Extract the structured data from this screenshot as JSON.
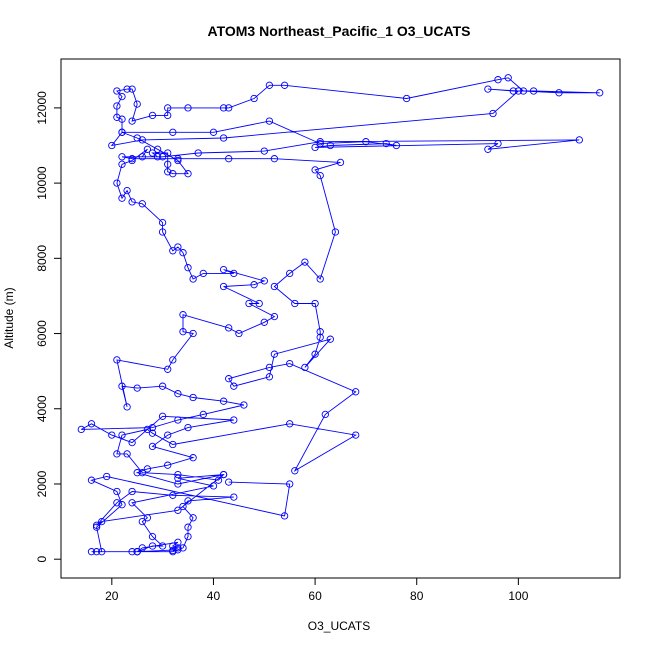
{
  "chart_data": {
    "type": "line",
    "title": "ATOM3 Northeast_Pacific_1 O3_UCATS",
    "xlabel": "O3_UCATS",
    "ylabel": "Altitude (m)",
    "xlim": [
      10,
      120
    ],
    "ylim": [
      -500,
      13300
    ],
    "xticks": [
      20,
      40,
      60,
      80,
      100
    ],
    "yticks": [
      0,
      2000,
      4000,
      6000,
      8000,
      10000,
      12000
    ],
    "grid": false,
    "markers": "open-circle",
    "color": "#0000ff",
    "series": [
      {
        "values": [
          [
            25,
            200
          ],
          [
            33,
            250
          ],
          [
            32,
            230
          ],
          [
            33,
            300
          ],
          [
            32,
            350
          ],
          [
            33,
            450
          ],
          [
            26,
            300
          ],
          [
            25,
            200
          ],
          [
            32,
            200
          ],
          [
            34,
            300
          ],
          [
            35,
            600
          ],
          [
            35,
            850
          ],
          [
            36,
            1100
          ],
          [
            34,
            1400
          ],
          [
            35,
            1550
          ],
          [
            44,
            1650
          ],
          [
            32,
            1700
          ],
          [
            24,
            1800
          ],
          [
            21,
            1500
          ],
          [
            17,
            900
          ],
          [
            18,
            1000
          ],
          [
            33,
            1300
          ],
          [
            42,
            2250
          ],
          [
            33,
            2000
          ],
          [
            25,
            2300
          ],
          [
            27,
            2400
          ],
          [
            31,
            2500
          ],
          [
            36,
            2700
          ],
          [
            28,
            3000
          ],
          [
            31,
            3300
          ],
          [
            35,
            3500
          ],
          [
            44,
            3700
          ],
          [
            30,
            3800
          ],
          [
            24,
            3100
          ],
          [
            20,
            3300
          ],
          [
            16,
            3600
          ],
          [
            14,
            3450
          ],
          [
            28,
            3500
          ],
          [
            33,
            3700
          ],
          [
            38,
            3850
          ],
          [
            46,
            4100
          ],
          [
            42,
            4200
          ],
          [
            36,
            4300
          ],
          [
            33,
            4400
          ],
          [
            30,
            4600
          ],
          [
            25,
            4550
          ],
          [
            22,
            4600
          ],
          [
            23,
            4050
          ],
          [
            21,
            5300
          ],
          [
            31,
            5050
          ],
          [
            32,
            5300
          ],
          [
            36,
            6000
          ],
          [
            34,
            6050
          ],
          [
            34,
            6500
          ],
          [
            43,
            6150
          ],
          [
            45,
            6000
          ],
          [
            50,
            6300
          ],
          [
            52,
            6450
          ],
          [
            47,
            6800
          ],
          [
            49,
            6800
          ],
          [
            42,
            7250
          ],
          [
            48,
            7300
          ],
          [
            50,
            7400
          ],
          [
            42,
            7700
          ],
          [
            44,
            7600
          ],
          [
            38,
            7600
          ],
          [
            36,
            7450
          ],
          [
            35,
            7750
          ],
          [
            34,
            8150
          ],
          [
            33,
            8300
          ],
          [
            32,
            8200
          ],
          [
            30,
            8700
          ],
          [
            30,
            8950
          ],
          [
            26,
            9450
          ],
          [
            24,
            9500
          ],
          [
            23,
            9800
          ],
          [
            22,
            9600
          ],
          [
            21,
            10000
          ],
          [
            22,
            10500
          ],
          [
            24,
            10600
          ],
          [
            27,
            10900
          ],
          [
            26,
            10700
          ],
          [
            29,
            10700
          ],
          [
            28,
            10800
          ],
          [
            31,
            10800
          ],
          [
            31,
            10500
          ],
          [
            31,
            10300
          ],
          [
            32,
            10250
          ],
          [
            35,
            10250
          ],
          [
            33,
            10600
          ],
          [
            29,
            10900
          ],
          [
            25,
            11200
          ],
          [
            22,
            11350
          ],
          [
            22,
            11700
          ],
          [
            21,
            11750
          ],
          [
            21,
            12050
          ],
          [
            22,
            12300
          ],
          [
            21,
            12450
          ],
          [
            23,
            12500
          ],
          [
            24,
            12500
          ],
          [
            25,
            12100
          ],
          [
            24,
            11650
          ],
          [
            28,
            11800
          ],
          [
            31,
            11800
          ],
          [
            31,
            12000
          ],
          [
            35,
            12000
          ],
          [
            42,
            12000
          ],
          [
            43,
            12000
          ],
          [
            48,
            12250
          ],
          [
            51,
            12600
          ],
          [
            54,
            12600
          ],
          [
            78,
            12250
          ],
          [
            96,
            12750
          ],
          [
            98,
            12800
          ],
          [
            101,
            12450
          ],
          [
            108,
            12400
          ],
          [
            116,
            12400
          ],
          [
            103,
            12450
          ],
          [
            99,
            12450
          ],
          [
            94,
            12500
          ],
          [
            100,
            12450
          ],
          [
            95,
            11850
          ],
          [
            42,
            11200
          ],
          [
            26,
            11150
          ],
          [
            20,
            11000
          ],
          [
            22,
            11350
          ],
          [
            32,
            11350
          ],
          [
            40,
            11350
          ],
          [
            51,
            11650
          ],
          [
            61,
            11050
          ],
          [
            70,
            11100
          ],
          [
            76,
            11000
          ],
          [
            74,
            11050
          ],
          [
            63,
            11000
          ],
          [
            60,
            10950
          ],
          [
            96,
            11050
          ],
          [
            94,
            10900
          ],
          [
            112,
            11150
          ],
          [
            61,
            11100
          ],
          [
            50,
            10850
          ],
          [
            37,
            10800
          ],
          [
            30,
            10700
          ],
          [
            22,
            10700
          ],
          [
            24,
            10650
          ],
          [
            33,
            10650
          ],
          [
            43,
            10650
          ],
          [
            52,
            10650
          ],
          [
            65,
            10550
          ],
          [
            60,
            10350
          ],
          [
            61,
            10200
          ],
          [
            64,
            8700
          ],
          [
            61,
            7450
          ],
          [
            58,
            7900
          ],
          [
            55,
            7600
          ],
          [
            52,
            7250
          ],
          [
            56,
            6800
          ],
          [
            60,
            6800
          ],
          [
            61,
            6050
          ],
          [
            61,
            5900
          ],
          [
            60,
            5450
          ],
          [
            58,
            5100
          ],
          [
            63,
            5850
          ],
          [
            52,
            5450
          ],
          [
            51,
            4850
          ],
          [
            44,
            4600
          ],
          [
            43,
            4800
          ],
          [
            51,
            5100
          ],
          [
            55,
            5200
          ],
          [
            68,
            4450
          ],
          [
            62,
            3850
          ],
          [
            56,
            2350
          ],
          [
            68,
            3300
          ],
          [
            55,
            3600
          ],
          [
            32,
            3050
          ],
          [
            28,
            3350
          ],
          [
            27,
            3450
          ],
          [
            22,
            3300
          ],
          [
            21,
            2800
          ],
          [
            23,
            2800
          ],
          [
            26,
            2300
          ],
          [
            33,
            2250
          ],
          [
            41,
            2100
          ],
          [
            42,
            2250
          ],
          [
            33,
            2150
          ],
          [
            40,
            1950
          ],
          [
            24,
            1500
          ],
          [
            27,
            1100
          ],
          [
            26,
            1000
          ],
          [
            28,
            600
          ],
          [
            30,
            350
          ],
          [
            28,
            350
          ],
          [
            25,
            200
          ],
          [
            24,
            200
          ],
          [
            16,
            200
          ],
          [
            17,
            200
          ],
          [
            18,
            200
          ],
          [
            17,
            850
          ],
          [
            22,
            1450
          ],
          [
            21,
            1800
          ],
          [
            16,
            2100
          ],
          [
            19,
            2200
          ],
          [
            54,
            1150
          ],
          [
            55,
            2000
          ],
          [
            43,
            2050
          ]
        ]
      }
    ]
  }
}
